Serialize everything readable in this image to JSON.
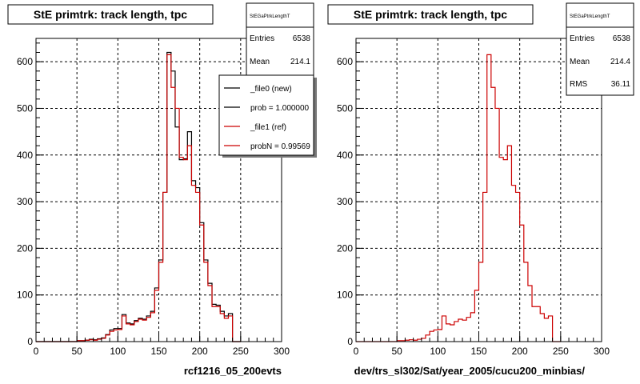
{
  "chart_data": [
    {
      "type": "histogram",
      "title": "StE primtrk: track length, tpc",
      "xlabel": "rcf1216_05_200evts",
      "xlim": [
        0,
        300
      ],
      "ylim": [
        0,
        650
      ],
      "xticks": [
        0,
        50,
        100,
        150,
        200,
        250,
        300
      ],
      "yticks": [
        0,
        100,
        200,
        300,
        400,
        500,
        600
      ],
      "grid": true,
      "bin_width": 5,
      "bins_start": 0,
      "series": [
        {
          "name": "_file0 (new)",
          "color": "#000000",
          "values": [
            0,
            0,
            0,
            0,
            0,
            0,
            0,
            0,
            0,
            0,
            2,
            2,
            3,
            5,
            4,
            6,
            8,
            15,
            25,
            28,
            28,
            58,
            40,
            38,
            45,
            50,
            48,
            55,
            65,
            115,
            175,
            320,
            620,
            580,
            460,
            390,
            392,
            450,
            345,
            330,
            255,
            175,
            125,
            80,
            78,
            65,
            55,
            60,
            0,
            0
          ]
        },
        {
          "name": "_file1 (ref)",
          "color": "#cc0000",
          "values": [
            0,
            0,
            0,
            0,
            0,
            0,
            0,
            0,
            0,
            0,
            2,
            2,
            3,
            4,
            3,
            5,
            7,
            14,
            22,
            25,
            26,
            55,
            38,
            36,
            43,
            48,
            46,
            52,
            62,
            110,
            170,
            320,
            615,
            545,
            500,
            395,
            390,
            420,
            335,
            320,
            250,
            170,
            120,
            75,
            75,
            60,
            50,
            55,
            0,
            0
          ]
        }
      ],
      "stats": {
        "title": "StEGaPtrkLengthT",
        "entries_label": "Entries",
        "entries": "6538",
        "mean_label": "Mean",
        "mean": "214.1"
      },
      "legend": {
        "entries": [
          "_file0 (new)",
          "prob = 1.000000",
          "_file1 (ref)",
          "probN = 0.99569"
        ],
        "placement": "top-right"
      }
    },
    {
      "type": "histogram",
      "title": "StE primtrk: track length, tpc",
      "xlabel": "dev/trs_sl302/Sat/year_2005/cucu200_minbias/",
      "xlim": [
        0,
        300
      ],
      "ylim": [
        0,
        650
      ],
      "xticks": [
        0,
        50,
        100,
        150,
        200,
        250,
        300
      ],
      "yticks": [
        0,
        100,
        200,
        300,
        400,
        500,
        600
      ],
      "grid": true,
      "bin_width": 5,
      "bins_start": 0,
      "series": [
        {
          "color": "#cc0000",
          "values": [
            0,
            0,
            0,
            0,
            0,
            0,
            0,
            0,
            0,
            0,
            2,
            2,
            3,
            4,
            3,
            5,
            7,
            14,
            22,
            25,
            26,
            55,
            38,
            36,
            43,
            48,
            46,
            52,
            62,
            110,
            170,
            320,
            615,
            545,
            500,
            395,
            390,
            420,
            335,
            320,
            250,
            170,
            120,
            75,
            75,
            60,
            50,
            55,
            0,
            0
          ]
        }
      ],
      "stats": {
        "title": "StEGaPtrkLengthT",
        "entries_label": "Entries",
        "entries": "6538",
        "mean_label": "Mean",
        "mean": "214.4",
        "rms_label": "RMS",
        "rms": "36.11"
      }
    }
  ]
}
